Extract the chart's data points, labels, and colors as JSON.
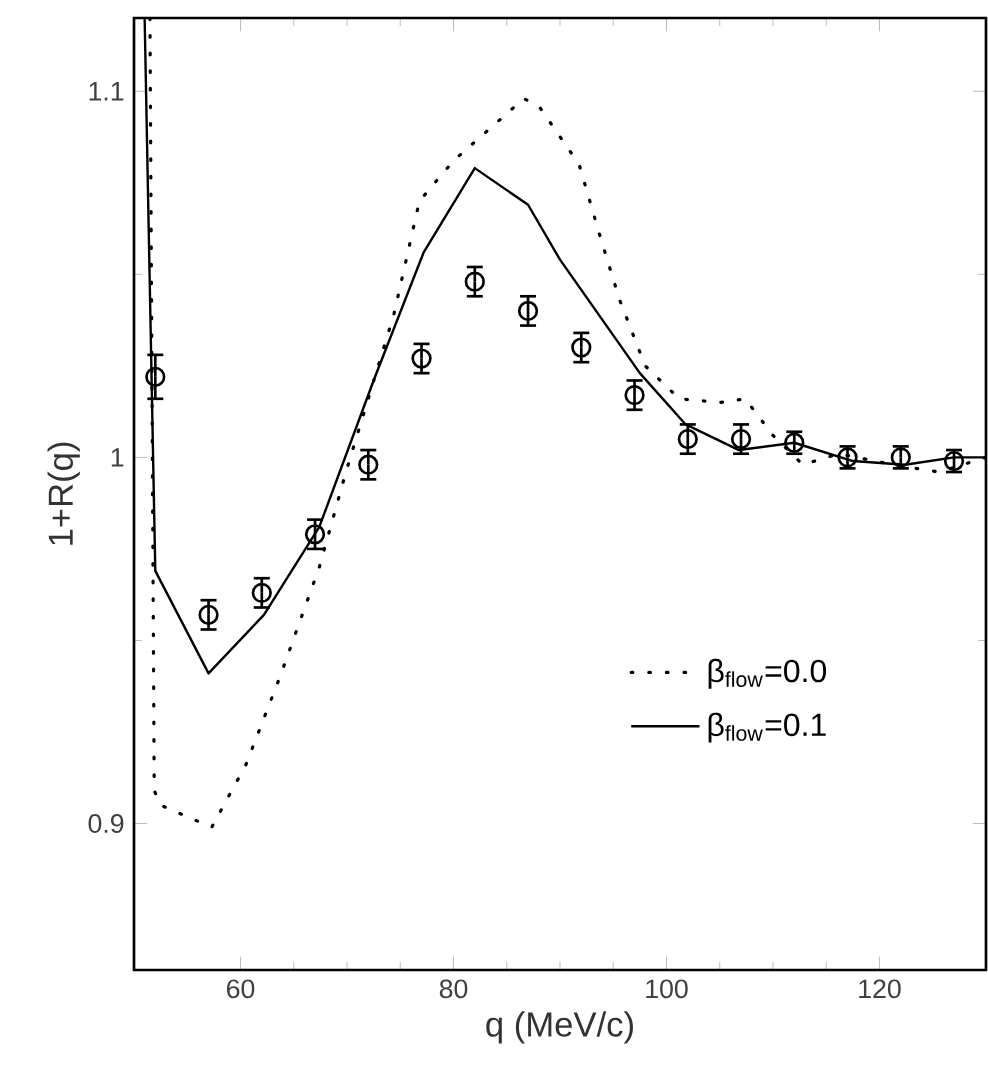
{
  "chart_data": {
    "type": "line",
    "xlabel": "q (MeV/c)",
    "ylabel": "1+R(q)",
    "xlim": [
      50,
      130
    ],
    "ylim": [
      0.86,
      1.12
    ],
    "xticks": [
      60,
      80,
      100,
      120
    ],
    "yticks": [
      0.9,
      1,
      1.1
    ],
    "grid": false,
    "legend": "bottom right",
    "series": [
      {
        "name": "β$_{flow}$=0.0",
        "color": "#000000",
        "line_style": "dotted",
        "marker": "none",
        "x": [
          51.5,
          51.9,
          52.5,
          57.3,
          60.5,
          63.7,
          67.4,
          69.9,
          74.4,
          76.8,
          80,
          86.6,
          88,
          91.8,
          93.7,
          95.6,
          98,
          101.2,
          105,
          107.4,
          110,
          112.8,
          116.2,
          121.3,
          125.6,
          130
        ],
        "values": [
          1.12,
          0.909,
          0.905,
          0.899,
          0.916,
          0.94,
          0.97,
          0.996,
          1.039,
          1.07,
          1.081,
          1.098,
          1.096,
          1.08,
          1.061,
          1.043,
          1.025,
          1.016,
          1.015,
          1.016,
          1.006,
          0.998,
          1.001,
          0.998,
          0.996,
          1.0
        ]
      },
      {
        "name": "β$_{flow}$=0.1",
        "color": "#000000",
        "line_style": "solid",
        "marker": "none",
        "x": [
          51,
          52,
          57,
          62.2,
          67.4,
          72.5,
          77.2,
          82,
          87,
          90,
          97.5,
          101.8,
          106.8,
          112,
          117.5,
          122.4,
          127,
          130
        ],
        "values": [
          1.12,
          0.969,
          0.941,
          0.957,
          0.981,
          1.021,
          1.056,
          1.079,
          1.069,
          1.054,
          1.023,
          1.009,
          1.002,
          1.004,
          0.999,
          0.998,
          1.0,
          1.0
        ]
      },
      {
        "type": "scatter",
        "color": "#000000",
        "marker": "circle",
        "x": [
          52,
          57,
          62,
          67,
          72,
          77,
          82,
          87,
          92,
          97,
          102,
          107,
          112,
          117,
          122,
          127
        ],
        "values": [
          1.022,
          0.957,
          0.963,
          0.979,
          0.998,
          1.027,
          1.048,
          1.04,
          1.03,
          1.017,
          1.005,
          1.005,
          1.004,
          1.0,
          1.0,
          0.999
        ],
        "errors": [
          0.006,
          0.004,
          0.004,
          0.004,
          0.004,
          0.004,
          0.004,
          0.004,
          0.004,
          0.004,
          0.004,
          0.004,
          0.003,
          0.003,
          0.003,
          0.003
        ]
      }
    ]
  }
}
